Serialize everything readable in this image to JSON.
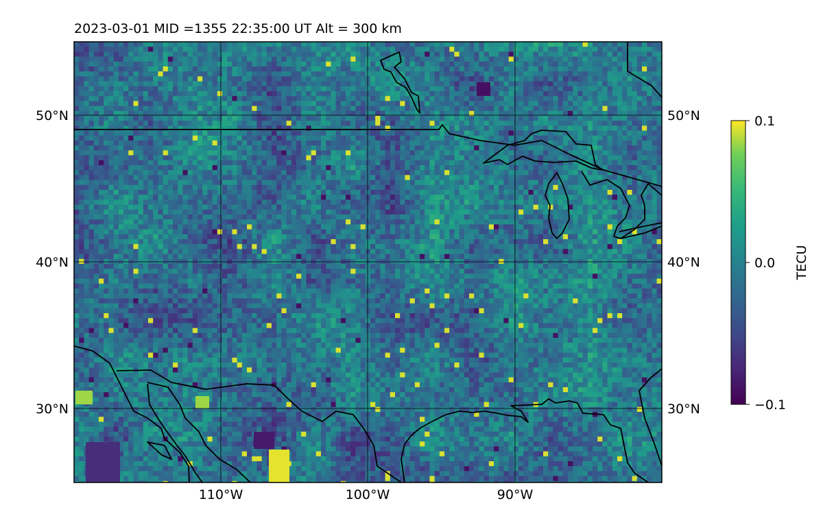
{
  "title": "2023-03-01  MID =1355    22:35:00  UT  Alt = 300 km",
  "map": {
    "lon_range": [
      -120,
      -80
    ],
    "lat_range": [
      25,
      55
    ],
    "lat_tick_labels": [
      "50°N",
      "40°N",
      "30°N"
    ],
    "lon_tick_labels": [
      "110°W",
      "100°W",
      "90°W"
    ],
    "lat_ticks": [
      50,
      40,
      30
    ],
    "lon_ticks": [
      -110,
      -100,
      -90
    ],
    "gridlines": true,
    "coastlines": true,
    "colormap": "viridis",
    "background_color": "#2f6f8e"
  },
  "colorbar": {
    "label": "TECU",
    "tick_labels": [
      "0.1",
      "0.0",
      "−0.1"
    ],
    "ticks": [
      0.1,
      0.0,
      -0.1
    ],
    "vmin": -0.1,
    "vmax": 0.1
  },
  "chart_data": {
    "type": "heatmap",
    "title": "2023-03-01  MID =1355    22:35:00  UT  Alt = 300 km",
    "quantity": "TECU",
    "x_range": [
      -120,
      -80
    ],
    "y_range": [
      25,
      55
    ],
    "value_range": [
      -0.1,
      0.1
    ],
    "description_values": "Gridded differential TEC perturbation values mostly between -0.05 and 0.05 TECU, with scattered extremes of +/-0.1 TECU"
  }
}
